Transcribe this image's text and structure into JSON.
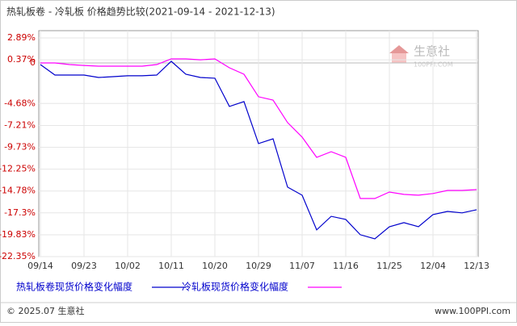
{
  "chart_data": {
    "type": "line",
    "title": "热轧板卷 - 冷轧板 价格趋势比较(2021-09-14 - 2021-12-13)",
    "categories": [
      "09/14",
      null,
      null,
      "09/23",
      null,
      null,
      "10/02",
      null,
      null,
      "10/11",
      null,
      null,
      "10/20",
      null,
      null,
      "10/29",
      null,
      null,
      "11/07",
      null,
      null,
      "11/16",
      null,
      null,
      "11/25",
      null,
      null,
      "12/04",
      null,
      null,
      "12/13"
    ],
    "series": [
      {
        "name": "热轧板卷现货价格变化幅度",
        "color": "#0000cc",
        "values": [
          -0.18,
          -1.39,
          -1.39,
          -1.39,
          -1.67,
          -1.58,
          -1.48,
          -1.48,
          -1.39,
          0.19,
          -1.3,
          -1.67,
          -1.76,
          -5.02,
          -4.46,
          -9.3,
          -8.75,
          -14.33,
          -15.26,
          -19.27,
          -17.7,
          -18.06,
          -19.83,
          -20.3,
          -18.9,
          -18.43,
          -18.9,
          -17.5,
          -17.13,
          -17.3,
          -16.94
        ]
      },
      {
        "name": "冷轧板现货价格变化幅度",
        "color": "#ff00ff",
        "values": [
          0.0,
          0.0,
          -0.18,
          -0.28,
          -0.37,
          -0.37,
          -0.37,
          -0.37,
          -0.18,
          0.47,
          0.47,
          0.37,
          0.47,
          -0.55,
          -1.3,
          -3.9,
          -4.28,
          -6.88,
          -8.56,
          -10.89,
          -10.24,
          -10.89,
          -15.64,
          -15.64,
          -14.9,
          -15.17,
          -15.26,
          -15.07,
          -14.71,
          -14.71,
          -14.62
        ]
      }
    ],
    "ylim": [
      -22.35,
      3.73
    ],
    "yticks": [
      {
        "value": 2.89,
        "label": "2.89%"
      },
      {
        "value": 0.37,
        "label": "0.37%"
      },
      0,
      {
        "value": -4.68,
        "label": "-4.68%"
      },
      {
        "value": -7.21,
        "label": "-7.21%"
      },
      {
        "value": -9.73,
        "label": "-9.73%"
      },
      {
        "value": -12.25,
        "label": "-12.25%"
      },
      {
        "value": -14.78,
        "label": "-14.78%"
      },
      {
        "value": -17.3,
        "label": "-17.3%"
      },
      {
        "value": -19.83,
        "label": "-19.83%"
      },
      {
        "value": -22.35,
        "label": "-22.35%"
      }
    ],
    "grid": true,
    "watermark": {
      "name": "生意社",
      "site": "100PPI.COM"
    },
    "footer": {
      "left": "© 2025.07 生意社",
      "right": "www.100PPI.com"
    }
  }
}
